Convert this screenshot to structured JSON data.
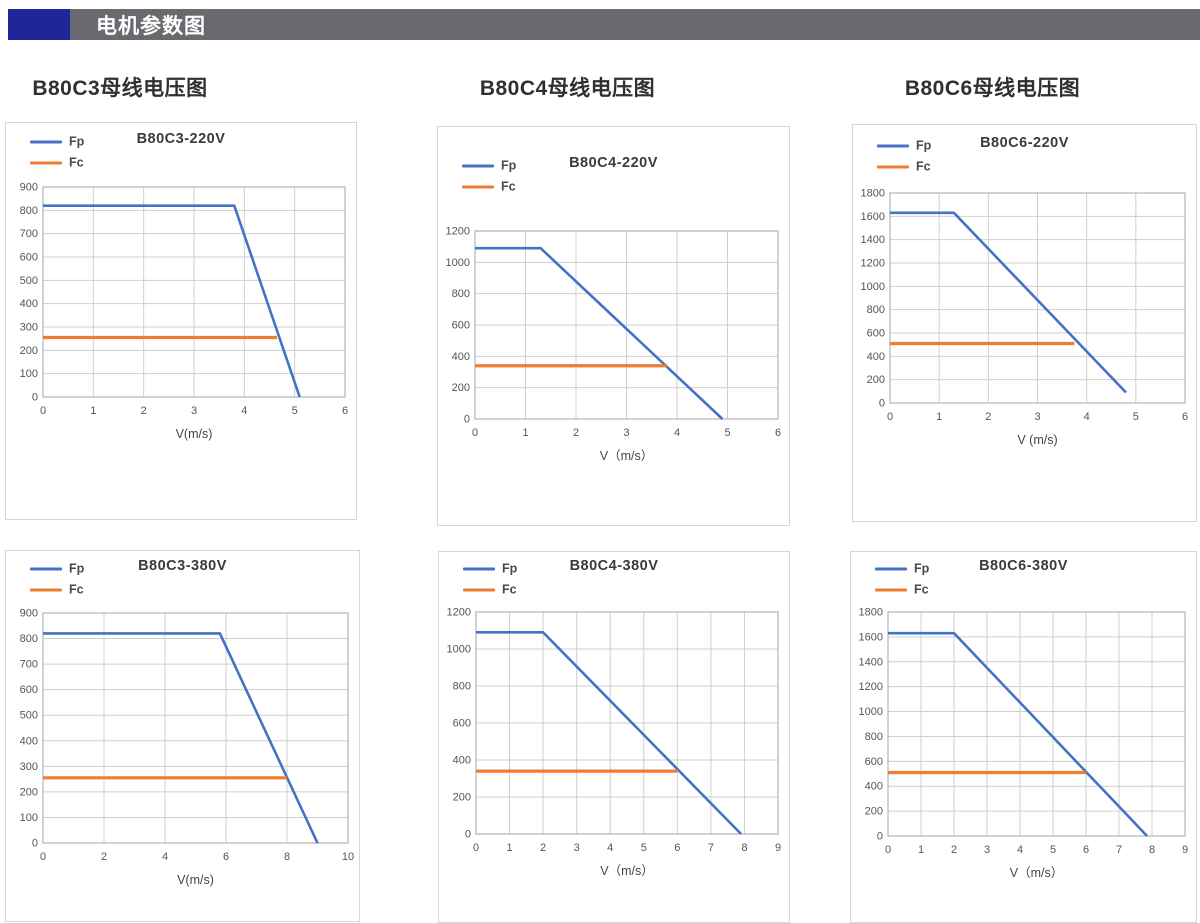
{
  "header": {
    "title": "电机参数图",
    "bar_color": "#696970",
    "accent_color": "#20259a"
  },
  "columns": [
    {
      "heading": "B80C3母线电压图"
    },
    {
      "heading": "B80C4母线电压图"
    },
    {
      "heading": "B80C6母线电压图"
    }
  ],
  "legend": {
    "fp": "Fp",
    "fc": "Fc"
  },
  "colors": {
    "fp_line": "#4472c4",
    "fc_line": "#ed7d31",
    "grid": "#cfcfcf",
    "plot_border": "#b5b5b5",
    "tick_text": "#555555",
    "axis_label_text": "#444444"
  },
  "chart_data": [
    {
      "type": "line",
      "title": "B80C3-220V",
      "xlabel": "V(m/s)",
      "xlim": [
        0,
        6
      ],
      "xticks": [
        0,
        1,
        2,
        3,
        4,
        5,
        6
      ],
      "ylim": [
        0,
        900
      ],
      "yticks": [
        0,
        100,
        200,
        300,
        400,
        500,
        600,
        700,
        800,
        900
      ],
      "grid": true,
      "legend_position": "top-left",
      "series": [
        {
          "name": "Fp",
          "color": "#4472c4",
          "points": [
            [
              0,
              820
            ],
            [
              3.8,
              820
            ],
            [
              5.1,
              0
            ]
          ]
        },
        {
          "name": "Fc",
          "color": "#ed7d31",
          "points": [
            [
              0,
              255
            ],
            [
              4.65,
              255
            ]
          ]
        }
      ]
    },
    {
      "type": "line",
      "title": "B80C4-220V",
      "xlabel": "V（m/s）",
      "xlim": [
        0,
        6
      ],
      "xticks": [
        0,
        1,
        2,
        3,
        4,
        5,
        6
      ],
      "ylim": [
        0,
        1200
      ],
      "yticks": [
        0,
        200,
        400,
        600,
        800,
        1000,
        1200
      ],
      "grid": true,
      "legend_position": "top-left",
      "series": [
        {
          "name": "Fp",
          "color": "#4472c4",
          "points": [
            [
              0,
              1090
            ],
            [
              1.3,
              1090
            ],
            [
              4.9,
              0
            ]
          ]
        },
        {
          "name": "Fc",
          "color": "#ed7d31",
          "points": [
            [
              0,
              340
            ],
            [
              3.8,
              340
            ]
          ]
        }
      ]
    },
    {
      "type": "line",
      "title": "B80C6-220V",
      "xlabel": "V (m/s)",
      "xlim": [
        0,
        6
      ],
      "xticks": [
        0,
        1,
        2,
        3,
        4,
        5,
        6
      ],
      "ylim": [
        0,
        1800
      ],
      "yticks": [
        0,
        200,
        400,
        600,
        800,
        1000,
        1200,
        1400,
        1600,
        1800
      ],
      "grid": true,
      "legend_position": "top-left",
      "series": [
        {
          "name": "Fp",
          "color": "#4472c4",
          "points": [
            [
              0,
              1630
            ],
            [
              1.3,
              1630
            ],
            [
              4.8,
              90
            ]
          ]
        },
        {
          "name": "Fc",
          "color": "#ed7d31",
          "points": [
            [
              0,
              510
            ],
            [
              3.75,
              510
            ]
          ]
        }
      ]
    },
    {
      "type": "line",
      "title": "B80C3-380V",
      "xlabel": "V(m/s)",
      "xlim": [
        0,
        10
      ],
      "xticks": [
        0,
        2,
        4,
        6,
        8,
        10
      ],
      "ylim": [
        0,
        900
      ],
      "yticks": [
        0,
        100,
        200,
        300,
        400,
        500,
        600,
        700,
        800,
        900
      ],
      "grid": true,
      "legend_position": "top-left",
      "series": [
        {
          "name": "Fp",
          "color": "#4472c4",
          "points": [
            [
              0,
              820
            ],
            [
              5.8,
              820
            ],
            [
              9.0,
              0
            ]
          ]
        },
        {
          "name": "Fc",
          "color": "#ed7d31",
          "points": [
            [
              0,
              255
            ],
            [
              8.0,
              255
            ]
          ]
        }
      ]
    },
    {
      "type": "line",
      "title": "B80C4-380V",
      "xlabel": "V（m/s）",
      "xlim": [
        0,
        9
      ],
      "xticks": [
        0,
        1,
        2,
        3,
        4,
        5,
        6,
        7,
        8,
        9
      ],
      "ylim": [
        0,
        1200
      ],
      "yticks": [
        0,
        200,
        400,
        600,
        800,
        1000,
        1200
      ],
      "grid": true,
      "legend_position": "top-left",
      "series": [
        {
          "name": "Fp",
          "color": "#4472c4",
          "points": [
            [
              0,
              1090
            ],
            [
              2.0,
              1090
            ],
            [
              7.9,
              0
            ]
          ]
        },
        {
          "name": "Fc",
          "color": "#ed7d31",
          "points": [
            [
              0,
              340
            ],
            [
              6.0,
              340
            ]
          ]
        }
      ]
    },
    {
      "type": "line",
      "title": "B80C6-380V",
      "xlabel": "V（m/s）",
      "xlim": [
        0,
        9
      ],
      "xticks": [
        0,
        1,
        2,
        3,
        4,
        5,
        6,
        7,
        8,
        9
      ],
      "ylim": [
        0,
        1800
      ],
      "yticks": [
        0,
        200,
        400,
        600,
        800,
        1000,
        1200,
        1400,
        1600,
        1800
      ],
      "grid": true,
      "legend_position": "top-left",
      "series": [
        {
          "name": "Fp",
          "color": "#4472c4",
          "points": [
            [
              0,
              1630
            ],
            [
              2.0,
              1630
            ],
            [
              7.85,
              0
            ]
          ]
        },
        {
          "name": "Fc",
          "color": "#ed7d31",
          "points": [
            [
              0,
              510
            ],
            [
              6.0,
              510
            ]
          ]
        }
      ]
    }
  ]
}
